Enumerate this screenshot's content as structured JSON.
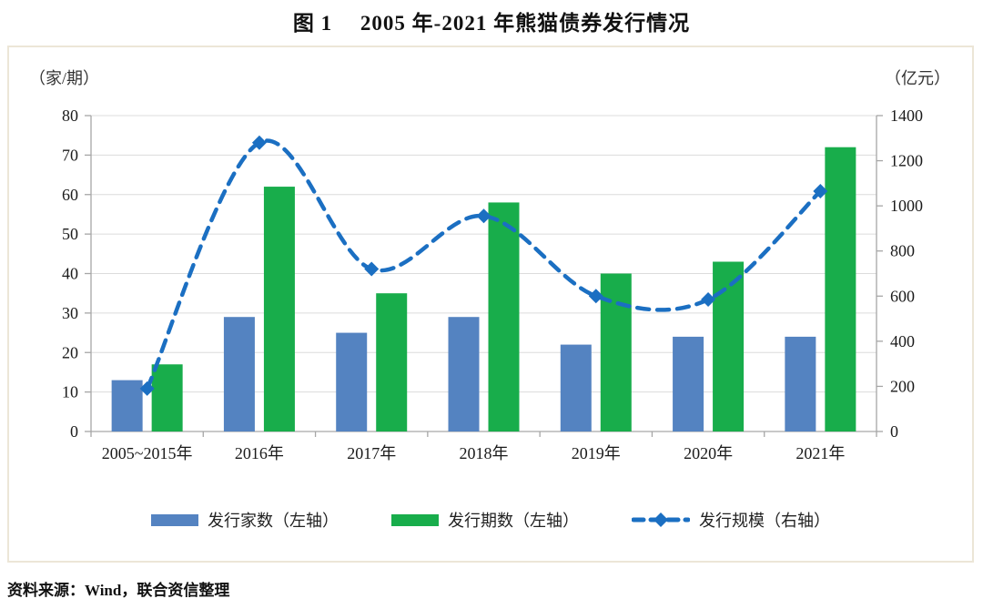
{
  "title": "图 1　 2005 年-2021 年熊猫债券发行情况",
  "source_note": "资料来源：Wind，联合资信整理",
  "colors": {
    "bar_blue": "#5483C1",
    "bar_green": "#18AD4B",
    "line_blue": "#1B6FC2",
    "gridline": "#dcdcdc",
    "axis": "#a6a6a6",
    "box_border": "#ece6d7",
    "text": "#1a1a1a"
  },
  "chart_data": {
    "type": "combo",
    "title": "图 1　 2005 年-2021 年熊猫债券发行情况",
    "categories": [
      "2005~2015年",
      "2016年",
      "2017年",
      "2018年",
      "2019年",
      "2020年",
      "2021年"
    ],
    "series": [
      {
        "id": "issuer-count",
        "name": "发行家数（左轴）",
        "type": "bar",
        "axis": "left",
        "color": "#5483C1",
        "values": [
          13,
          29,
          25,
          29,
          22,
          24,
          24
        ]
      },
      {
        "id": "issue-count",
        "name": "发行期数（左轴）",
        "type": "bar",
        "axis": "left",
        "color": "#18AD4B",
        "values": [
          17,
          62,
          35,
          58,
          40,
          43,
          72
        ]
      },
      {
        "id": "issue-scale",
        "name": "发行规模（右轴）",
        "type": "line",
        "axis": "right",
        "color": "#1B6FC2",
        "line_style": "dashed",
        "marker": "diamond",
        "smooth": true,
        "values": [
          190,
          1280,
          720,
          955,
          600,
          585,
          1065
        ]
      }
    ],
    "left_axis": {
      "unit": "（家/期）",
      "min": 0,
      "max": 80,
      "step": 10,
      "ticks": [
        0,
        10,
        20,
        30,
        40,
        50,
        60,
        70,
        80
      ]
    },
    "right_axis": {
      "unit": "（亿元）",
      "min": 0,
      "max": 1400,
      "step": 200,
      "ticks": [
        0,
        200,
        400,
        600,
        800,
        1000,
        1200,
        1400
      ]
    },
    "grid": true,
    "legend_position": "bottom"
  }
}
